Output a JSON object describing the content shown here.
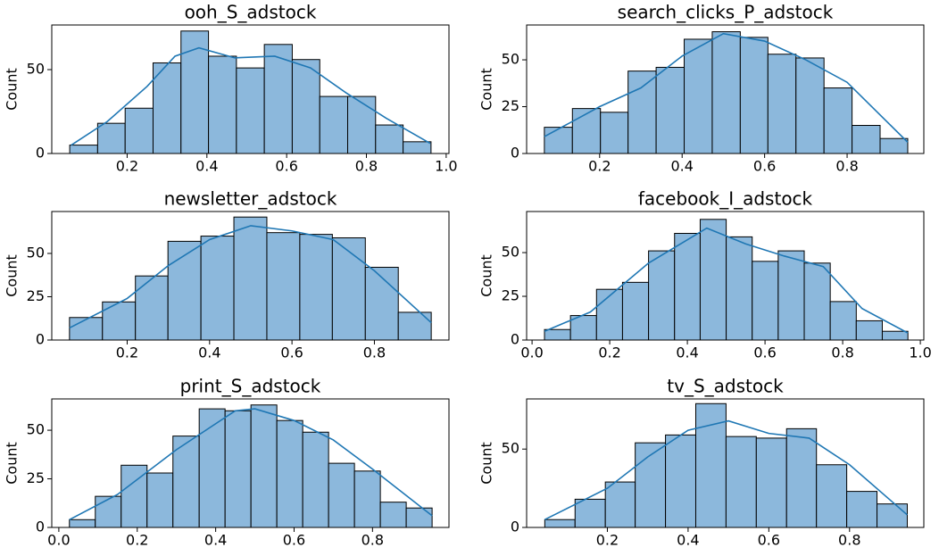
{
  "chart_data": [
    {
      "type": "histogram",
      "title": "ooh_S_adstock",
      "ylabel": "Count",
      "color": "#8cb8dc",
      "line_color": "#1f77b4",
      "bins": [
        0.056,
        0.126,
        0.195,
        0.265,
        0.335,
        0.404,
        0.474,
        0.544,
        0.614,
        0.683,
        0.753,
        0.823,
        0.892,
        0.962
      ],
      "values": [
        5,
        18,
        27,
        54,
        73,
        58,
        51,
        65,
        56,
        34,
        34,
        17,
        7
      ],
      "kde": {
        "x": [
          0.06,
          0.15,
          0.25,
          0.32,
          0.38,
          0.47,
          0.57,
          0.66,
          0.75,
          0.85,
          0.96
        ],
        "values": [
          5,
          19,
          40,
          58,
          63,
          57,
          58,
          51,
          36,
          21,
          6
        ]
      },
      "xlim": [
        0.011,
        1.007
      ],
      "xticks": [
        0.2,
        0.4,
        0.6,
        0.8,
        {
          "value": 1,
          "label": "1.0"
        }
      ],
      "ylim": [
        0,
        76.6
      ],
      "yticks": [
        0,
        50
      ]
    },
    {
      "type": "histogram",
      "title": "search_clicks_P_adstock",
      "ylabel": "Count",
      "color": "#8cb8dc",
      "line_color": "#1f77b4",
      "bins": [
        0.066,
        0.134,
        0.202,
        0.269,
        0.337,
        0.405,
        0.473,
        0.541,
        0.608,
        0.676,
        0.744,
        0.812,
        0.88,
        0.947
      ],
      "values": [
        14,
        24,
        22,
        44,
        46,
        61,
        65,
        62,
        53,
        51,
        35,
        15,
        8
      ],
      "kde": {
        "x": [
          0.066,
          0.2,
          0.3,
          0.4,
          0.5,
          0.6,
          0.7,
          0.8,
          0.947
        ],
        "values": [
          9,
          25,
          35,
          52,
          64,
          60,
          50,
          38,
          6
        ]
      },
      "xlim": [
        0.023,
        0.986
      ],
      "xticks": [
        0.2,
        0.4,
        0.6,
        0.8
      ],
      "ylim": [
        0,
        68.6
      ],
      "yticks": [
        0,
        25,
        50
      ]
    },
    {
      "type": "histogram",
      "title": "newsletter_adstock",
      "ylabel": "Count",
      "color": "#8cb8dc",
      "line_color": "#1f77b4",
      "bins": [
        0.06,
        0.14,
        0.22,
        0.299,
        0.379,
        0.459,
        0.539,
        0.619,
        0.698,
        0.778,
        0.858,
        0.938
      ],
      "values": [
        13,
        22,
        37,
        57,
        60,
        71,
        62,
        61,
        59,
        42,
        16
      ],
      "kde": {
        "x": [
          0.06,
          0.2,
          0.3,
          0.4,
          0.5,
          0.6,
          0.7,
          0.8,
          0.938
        ],
        "values": [
          7,
          24,
          43,
          58,
          66,
          63,
          58,
          40,
          10
        ]
      },
      "xlim": [
        0.017,
        0.981
      ],
      "xticks": [
        0.2,
        0.4,
        0.6,
        0.8
      ],
      "ylim": [
        0,
        74.2
      ],
      "yticks": [
        0,
        25,
        50
      ]
    },
    {
      "type": "histogram",
      "title": "facebook_I_adstock",
      "ylabel": "Count",
      "color": "#8cb8dc",
      "line_color": "#1f77b4",
      "bins": [
        0.032,
        0.099,
        0.166,
        0.233,
        0.3,
        0.367,
        0.433,
        0.5,
        0.567,
        0.634,
        0.701,
        0.768,
        0.835,
        0.902,
        0.968
      ],
      "values": [
        6,
        14,
        29,
        33,
        51,
        61,
        69,
        59,
        45,
        51,
        44,
        22,
        11,
        5
      ],
      "kde": {
        "x": [
          0.032,
          0.15,
          0.3,
          0.45,
          0.55,
          0.65,
          0.75,
          0.85,
          0.968
        ],
        "values": [
          5,
          16,
          44,
          64,
          55,
          48,
          42,
          18,
          4
        ]
      },
      "xlim": [
        -0.014,
        1.009
      ],
      "xticks": [
        {
          "value": 0,
          "label": "0.0"
        },
        0.2,
        0.4,
        0.6,
        0.8,
        {
          "value": 1,
          "label": "1.0"
        }
      ],
      "ylim": [
        0,
        73.5
      ],
      "yticks": [
        0,
        25,
        50
      ]
    },
    {
      "type": "histogram",
      "title": "print_S_adstock",
      "ylabel": "Count",
      "color": "#8cb8dc",
      "line_color": "#1f77b4",
      "bins": [
        0.027,
        0.093,
        0.159,
        0.225,
        0.291,
        0.358,
        0.424,
        0.49,
        0.556,
        0.622,
        0.688,
        0.754,
        0.82,
        0.886,
        0.952
      ],
      "values": [
        4,
        16,
        32,
        28,
        47,
        61,
        60,
        63,
        55,
        49,
        33,
        29,
        13,
        10
      ],
      "kde": {
        "x": [
          0.027,
          0.15,
          0.3,
          0.45,
          0.5,
          0.6,
          0.7,
          0.8,
          0.952
        ],
        "values": [
          4,
          17,
          40,
          60,
          61,
          55,
          45,
          30,
          6
        ]
      },
      "xlim": [
        -0.018,
        0.995
      ],
      "xticks": [
        {
          "value": 0,
          "label": "0.0"
        },
        0.2,
        0.4,
        0.6,
        0.8
      ],
      "ylim": [
        0,
        66.1
      ],
      "yticks": [
        0,
        25,
        50
      ]
    },
    {
      "type": "histogram",
      "title": "tv_S_adstock",
      "ylabel": "Count",
      "color": "#8cb8dc",
      "line_color": "#1f77b4",
      "bins": [
        0.045,
        0.12,
        0.195,
        0.269,
        0.344,
        0.419,
        0.494,
        0.569,
        0.644,
        0.718,
        0.793,
        0.868,
        0.943
      ],
      "values": [
        5,
        18,
        29,
        54,
        59,
        79,
        58,
        57,
        63,
        40,
        23,
        15
      ],
      "kde": {
        "x": [
          0.045,
          0.2,
          0.3,
          0.4,
          0.5,
          0.6,
          0.7,
          0.8,
          0.943
        ],
        "values": [
          5,
          25,
          45,
          62,
          68,
          60,
          57,
          40,
          8
        ]
      },
      "xlim": [
        0.0,
        0.984
      ],
      "xticks": [
        0.2,
        0.4,
        0.6,
        0.8
      ],
      "ylim": [
        0,
        82
      ],
      "yticks": [
        0,
        50
      ]
    }
  ]
}
